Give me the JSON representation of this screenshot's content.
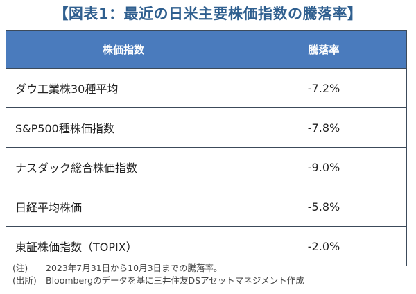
{
  "title": "【図表1：最近の日米主要株価指数の騰落率】",
  "table": {
    "headers": [
      "株価指数",
      "騰落率"
    ],
    "rows": [
      {
        "name": "ダウ工業株30種平均",
        "value": "-7.2%"
      },
      {
        "name": "S&P500種株価指数",
        "value": "-7.8%"
      },
      {
        "name": "ナスダック総合株価指数",
        "value": "-9.0%"
      },
      {
        "name": "日経平均株価",
        "value": "-5.8%"
      },
      {
        "name": "東証株価指数（TOPIX）",
        "value": "-2.0%"
      }
    ]
  },
  "notes": [
    {
      "label": "(注)",
      "text": "2023年7月31日から10月3日までの騰落率。"
    },
    {
      "label": "(出所)",
      "text": "Bloombergのデータを基に三井住友DSアセットマネジメント作成"
    }
  ]
}
